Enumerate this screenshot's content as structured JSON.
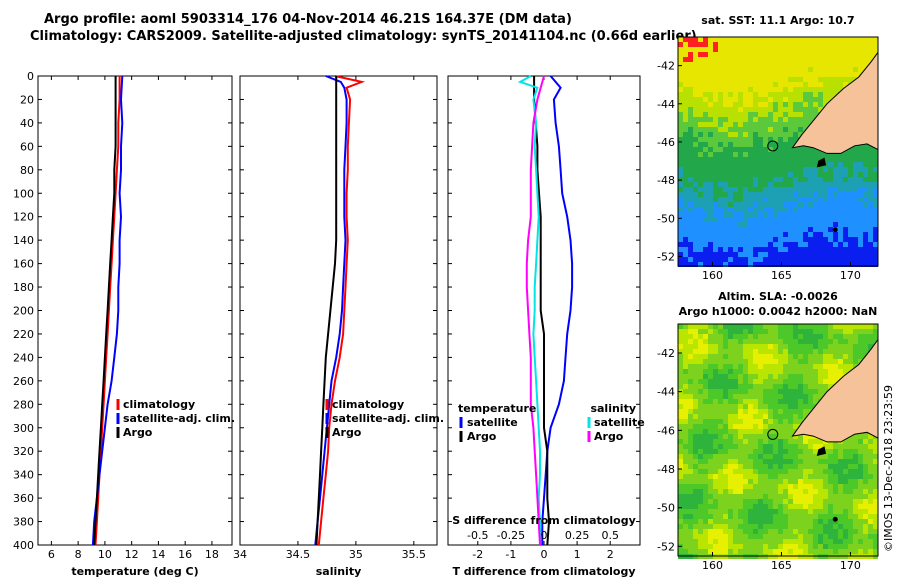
{
  "header": {
    "line1": "Argo profile: aoml 5903314_176 04-Nov-2014 46.21S 164.37E (DM data)",
    "line2": "Climatology: CARS2009. Satellite-adjusted climatology: synTS_20141104.nc (0.66d earlier)"
  },
  "watermark": "©IMOS 13-Dec-2018 23:23:59",
  "colors": {
    "climatology": "#ff0000",
    "satellite": "#0000ff",
    "argo": "#000000",
    "sat_salinity": "#00e5e5",
    "argo_salinity": "#ff00ff"
  },
  "chart_data": [
    {
      "type": "line",
      "title": "",
      "xlabel": "temperature (deg C)",
      "ylabel": "",
      "xlim": [
        5,
        19.5
      ],
      "ylim": [
        400,
        0
      ],
      "xticks": [
        "6",
        "8",
        "10",
        "12",
        "14",
        "16",
        "18"
      ],
      "yticks": [
        "0",
        "20",
        "40",
        "60",
        "80",
        "100",
        "120",
        "140",
        "160",
        "180",
        "200",
        "220",
        "240",
        "260",
        "280",
        "300",
        "320",
        "340",
        "360",
        "380",
        "400"
      ],
      "legend": [
        "climatology",
        "satellite-adj. clim.",
        "Argo"
      ],
      "series": [
        {
          "name": "climatology",
          "color": "#ff0000",
          "depth": [
            0,
            20,
            40,
            60,
            80,
            100,
            120,
            140,
            160,
            180,
            200,
            220,
            240,
            260,
            280,
            300,
            320,
            340,
            360,
            380,
            400
          ],
          "values": [
            11.1,
            11.1,
            11.0,
            11.0,
            10.9,
            10.8,
            10.7,
            10.6,
            10.5,
            10.4,
            10.3,
            10.2,
            10.1,
            10.0,
            9.9,
            9.8,
            9.7,
            9.6,
            9.5,
            9.4,
            9.3
          ]
        },
        {
          "name": "satellite-adj. clim.",
          "color": "#0000ff",
          "depth": [
            0,
            20,
            40,
            60,
            80,
            100,
            120,
            140,
            160,
            180,
            200,
            220,
            240,
            260,
            280,
            300,
            320,
            340,
            360,
            380,
            400
          ],
          "values": [
            11.3,
            11.2,
            11.3,
            11.2,
            11.2,
            11.1,
            11.2,
            11.1,
            11.1,
            11.0,
            11.0,
            10.9,
            10.7,
            10.5,
            10.2,
            10.0,
            9.8,
            9.6,
            9.4,
            9.2,
            9.1
          ]
        },
        {
          "name": "Argo",
          "color": "#000000",
          "depth": [
            0,
            20,
            40,
            60,
            80,
            100,
            120,
            140,
            160,
            180,
            200,
            220,
            240,
            260,
            280,
            300,
            320,
            340,
            360,
            380,
            400
          ],
          "values": [
            10.8,
            10.8,
            10.8,
            10.8,
            10.7,
            10.7,
            10.6,
            10.5,
            10.4,
            10.3,
            10.2,
            10.1,
            10.0,
            9.9,
            9.8,
            9.7,
            9.6,
            9.5,
            9.4,
            9.3,
            9.2
          ]
        }
      ]
    },
    {
      "type": "line",
      "xlabel": "salinity",
      "xlim": [
        34,
        35.7
      ],
      "ylim": [
        400,
        0
      ],
      "xticks": [
        "34",
        "34.5",
        "35",
        "35.5"
      ],
      "legend": [
        "climatology",
        "satellite-adj. clim.",
        "Argo"
      ],
      "series": [
        {
          "name": "climatology",
          "color": "#ff0000",
          "depth": [
            0,
            5,
            10,
            20,
            40,
            60,
            80,
            100,
            120,
            140,
            160,
            180,
            200,
            220,
            240,
            260,
            280,
            300,
            320,
            340,
            360,
            380,
            400
          ],
          "values": [
            34.82,
            35.05,
            34.92,
            34.95,
            34.94,
            34.93,
            34.93,
            34.92,
            34.92,
            34.93,
            34.92,
            34.91,
            34.9,
            34.89,
            34.86,
            34.82,
            34.79,
            34.77,
            34.76,
            34.74,
            34.72,
            34.7,
            34.68
          ]
        },
        {
          "name": "satellite-adj. clim.",
          "color": "#0000ff",
          "depth": [
            0,
            5,
            10,
            20,
            40,
            60,
            80,
            100,
            120,
            140,
            160,
            180,
            200,
            220,
            240,
            260,
            280,
            300,
            320,
            340,
            360,
            380,
            400
          ],
          "values": [
            34.74,
            34.87,
            34.9,
            34.92,
            34.92,
            34.91,
            34.9,
            34.9,
            34.9,
            34.91,
            34.9,
            34.89,
            34.88,
            34.86,
            34.83,
            34.79,
            34.77,
            34.75,
            34.73,
            34.71,
            34.69,
            34.67,
            34.65
          ]
        },
        {
          "name": "Argo",
          "color": "#000000",
          "depth": [
            0,
            20,
            40,
            60,
            80,
            100,
            120,
            140,
            160,
            180,
            200,
            220,
            240,
            260,
            280,
            300,
            320,
            340,
            360,
            380,
            400
          ],
          "values": [
            34.83,
            34.83,
            34.83,
            34.83,
            34.83,
            34.83,
            34.83,
            34.83,
            34.82,
            34.8,
            34.78,
            34.76,
            34.74,
            34.73,
            34.72,
            34.71,
            34.7,
            34.69,
            34.68,
            34.67,
            34.66
          ]
        }
      ]
    },
    {
      "type": "line",
      "xlabel": "T difference from climatology",
      "xlabel_top": "S difference from climatology",
      "xlim": [
        -2.9,
        2.9
      ],
      "ylim": [
        400,
        0
      ],
      "xticks": [
        "-2",
        "-1",
        "0",
        "1",
        "2"
      ],
      "xticks_top": [
        "-0.5",
        "-0.25",
        "0",
        "0.25",
        "0.5"
      ],
      "legend_titles": [
        "temperature",
        "salinity"
      ],
      "legend_left": [
        "satellite",
        "Argo"
      ],
      "legend_right": [
        "satellite",
        "Argo"
      ],
      "series": [
        {
          "name": "temperature satellite",
          "color": "#0000ff",
          "depth": [
            0,
            10,
            20,
            40,
            60,
            80,
            100,
            120,
            140,
            160,
            180,
            200,
            220,
            240,
            260,
            280,
            300,
            320,
            340,
            360,
            380,
            400
          ],
          "values": [
            0.2,
            0.5,
            0.3,
            0.35,
            0.45,
            0.5,
            0.55,
            0.7,
            0.8,
            0.85,
            0.85,
            0.8,
            0.7,
            0.65,
            0.6,
            0.45,
            0.2,
            0.1,
            0.05,
            0.0,
            -0.05,
            -0.05
          ]
        },
        {
          "name": "temperature Argo",
          "color": "#000000",
          "depth": [
            0,
            20,
            40,
            60,
            80,
            100,
            120,
            140,
            160,
            180,
            200,
            220,
            240,
            260,
            280,
            300,
            320,
            340,
            360,
            380,
            400
          ],
          "values": [
            -0.3,
            -0.3,
            -0.25,
            -0.2,
            -0.2,
            -0.15,
            -0.1,
            -0.1,
            -0.1,
            -0.1,
            -0.1,
            0.0,
            0.0,
            0.0,
            0.0,
            0.0,
            0.1,
            0.1,
            0.1,
            0.15,
            0.1
          ]
        },
        {
          "name": "salinity satellite",
          "color": "#00e5e5",
          "depth": [
            0,
            5,
            10,
            20,
            40,
            60,
            80,
            100,
            120,
            140,
            160,
            180,
            200,
            220,
            240,
            260,
            280,
            300,
            320,
            340,
            360,
            380,
            400
          ],
          "values": [
            -0.1,
            -0.18,
            -0.05,
            -0.08,
            -0.06,
            -0.07,
            -0.06,
            -0.05,
            -0.04,
            -0.05,
            -0.06,
            -0.07,
            -0.07,
            -0.08,
            -0.07,
            -0.06,
            -0.05,
            -0.04,
            -0.03,
            -0.03,
            -0.04,
            -0.03,
            -0.03
          ]
        },
        {
          "name": "salinity Argo",
          "color": "#ff00ff",
          "depth": [
            0,
            20,
            40,
            60,
            80,
            100,
            120,
            140,
            160,
            180,
            200,
            220,
            240,
            260,
            280,
            300,
            320,
            340,
            360,
            380,
            400
          ],
          "values": [
            0.0,
            -0.05,
            -0.08,
            -0.09,
            -0.1,
            -0.1,
            -0.1,
            -0.12,
            -0.13,
            -0.13,
            -0.12,
            -0.11,
            -0.1,
            -0.1,
            -0.1,
            -0.08,
            -0.07,
            -0.06,
            -0.05,
            -0.04,
            -0.03
          ]
        }
      ]
    },
    {
      "type": "heatmap",
      "title": "sat. SST: 11.1 Argo: 10.7",
      "xlim": [
        157.5,
        172
      ],
      "ylim": [
        -52.5,
        -40.5
      ],
      "xticks": [
        "160",
        "165",
        "170"
      ],
      "yticks": [
        "-42",
        "-44",
        "-46",
        "-48",
        "-50",
        "-52"
      ],
      "marker": {
        "lon": 164.37,
        "lat": -46.21
      }
    },
    {
      "type": "heatmap",
      "title": "Altim. SLA: -0.0026",
      "subtitle": "Argo h1000: 0.0042 h2000: NaN",
      "xlim": [
        157.5,
        172
      ],
      "ylim": [
        -52.5,
        -40.5
      ],
      "xticks": [
        "160",
        "165",
        "170"
      ],
      "yticks": [
        "-42",
        "-44",
        "-46",
        "-48",
        "-50",
        "-52"
      ],
      "marker": {
        "lon": 164.37,
        "lat": -46.21
      }
    }
  ]
}
